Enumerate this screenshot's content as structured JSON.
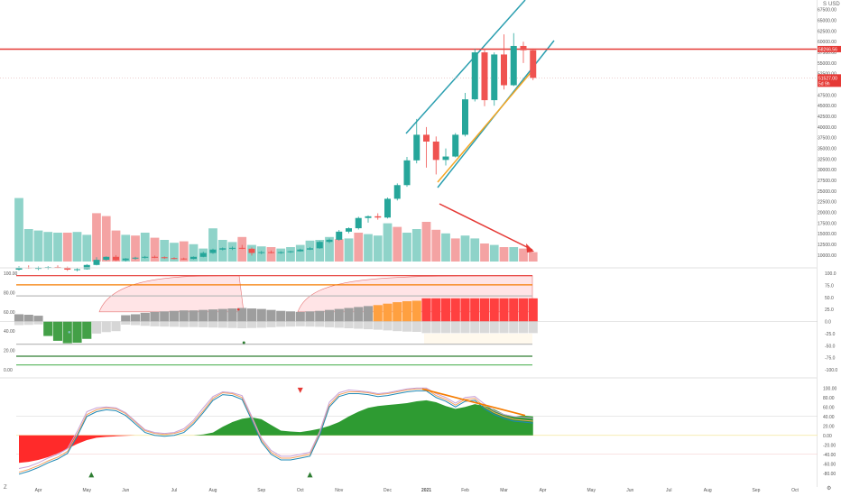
{
  "chart_data": [
    {
      "type": "candlestick",
      "currency": "USD",
      "price_ticks": [
        "67500.00",
        "65000.00",
        "62500.00",
        "60000.00",
        "57500.00",
        "55000.00",
        "52500.00",
        "50000.00",
        "47500.00",
        "45000.00",
        "42500.00",
        "40000.00",
        "37500.00",
        "35000.00",
        "32500.00",
        "30000.00",
        "27500.00",
        "25000.00",
        "22500.00",
        "20000.00",
        "17500.00",
        "15000.00",
        "12500.00",
        "10000.00"
      ],
      "price_range": [
        8500,
        68500
      ],
      "resistance_line": {
        "price": 58266.56,
        "label": "58266.56",
        "color": "#e53935"
      },
      "last_price": {
        "price": 51527.0,
        "label": "51527.00",
        "color": "#e53935"
      },
      "countdown": "5d 9h",
      "candles": [
        {
          "open": 6600,
          "high": 7400,
          "low": 6400,
          "close": 7100
        },
        {
          "open": 7100,
          "high": 7600,
          "low": 6800,
          "close": 6900
        },
        {
          "open": 6900,
          "high": 7300,
          "low": 6500,
          "close": 7000
        },
        {
          "open": 7000,
          "high": 7400,
          "low": 6700,
          "close": 7200
        },
        {
          "open": 7200,
          "high": 7600,
          "low": 6900,
          "close": 7000
        },
        {
          "open": 7000,
          "high": 7300,
          "low": 6300,
          "close": 6600
        },
        {
          "open": 6600,
          "high": 7000,
          "low": 6200,
          "close": 6700
        },
        {
          "open": 6700,
          "high": 7900,
          "low": 6600,
          "close": 7700
        },
        {
          "open": 7700,
          "high": 9500,
          "low": 7600,
          "close": 8900
        },
        {
          "open": 8900,
          "high": 9700,
          "low": 8700,
          "close": 9600
        },
        {
          "open": 9600,
          "high": 10000,
          "low": 8600,
          "close": 8800
        },
        {
          "open": 8800,
          "high": 9300,
          "low": 8500,
          "close": 9200
        },
        {
          "open": 9200,
          "high": 9600,
          "low": 8900,
          "close": 9400
        },
        {
          "open": 9400,
          "high": 9800,
          "low": 9200,
          "close": 9600
        },
        {
          "open": 9600,
          "high": 9900,
          "low": 9300,
          "close": 9500
        },
        {
          "open": 9500,
          "high": 9700,
          "low": 9100,
          "close": 9300
        },
        {
          "open": 9300,
          "high": 9500,
          "low": 9000,
          "close": 9200
        },
        {
          "open": 9200,
          "high": 9400,
          "low": 8900,
          "close": 9100
        },
        {
          "open": 9100,
          "high": 9700,
          "low": 9000,
          "close": 9600
        },
        {
          "open": 9600,
          "high": 10800,
          "low": 9500,
          "close": 10500
        },
        {
          "open": 10500,
          "high": 11500,
          "low": 10300,
          "close": 11300
        },
        {
          "open": 11300,
          "high": 11800,
          "low": 11100,
          "close": 11600
        },
        {
          "open": 11600,
          "high": 12000,
          "low": 11200,
          "close": 11700
        },
        {
          "open": 11700,
          "high": 12400,
          "low": 11400,
          "close": 11500
        },
        {
          "open": 11500,
          "high": 11800,
          "low": 9900,
          "close": 10500
        },
        {
          "open": 10500,
          "high": 11000,
          "low": 10200,
          "close": 10700
        },
        {
          "open": 10700,
          "high": 11100,
          "low": 10400,
          "close": 10600
        },
        {
          "open": 10600,
          "high": 10900,
          "low": 10300,
          "close": 10700
        },
        {
          "open": 10700,
          "high": 11000,
          "low": 10500,
          "close": 10900
        },
        {
          "open": 10900,
          "high": 11500,
          "low": 10800,
          "close": 11300
        },
        {
          "open": 11300,
          "high": 11900,
          "low": 11200,
          "close": 11600
        },
        {
          "open": 11600,
          "high": 13300,
          "low": 11500,
          "close": 13100
        },
        {
          "open": 13100,
          "high": 13900,
          "low": 12800,
          "close": 13600
        },
        {
          "open": 13600,
          "high": 15900,
          "low": 13400,
          "close": 15500
        },
        {
          "open": 15500,
          "high": 16500,
          "low": 15100,
          "close": 16300
        },
        {
          "open": 16300,
          "high": 19000,
          "low": 16000,
          "close": 18700
        },
        {
          "open": 18700,
          "high": 19300,
          "low": 17600,
          "close": 19100
        },
        {
          "open": 19100,
          "high": 19800,
          "low": 18300,
          "close": 18800
        },
        {
          "open": 18800,
          "high": 23500,
          "low": 18600,
          "close": 23200
        },
        {
          "open": 23200,
          "high": 26800,
          "low": 22800,
          "close": 26400
        },
        {
          "open": 26400,
          "high": 33000,
          "low": 26000,
          "close": 32200
        },
        {
          "open": 32200,
          "high": 41900,
          "low": 31500,
          "close": 38200
        },
        {
          "open": 38200,
          "high": 40000,
          "low": 30500,
          "close": 36600
        },
        {
          "open": 36600,
          "high": 37800,
          "low": 28900,
          "close": 32300
        },
        {
          "open": 32300,
          "high": 35000,
          "low": 31000,
          "close": 33100
        },
        {
          "open": 33100,
          "high": 38600,
          "low": 32900,
          "close": 38200
        },
        {
          "open": 38200,
          "high": 48000,
          "low": 37800,
          "close": 46500
        },
        {
          "open": 46500,
          "high": 58300,
          "low": 46000,
          "close": 57500
        },
        {
          "open": 57500,
          "high": 58300,
          "low": 44900,
          "close": 46300
        },
        {
          "open": 46300,
          "high": 57500,
          "low": 45000,
          "close": 57000
        },
        {
          "open": 57000,
          "high": 61700,
          "low": 48800,
          "close": 49800
        },
        {
          "open": 49800,
          "high": 62000,
          "low": 49600,
          "close": 59000
        },
        {
          "open": 59000,
          "high": 60000,
          "low": 55000,
          "close": 58000
        },
        {
          "open": 58000,
          "high": 58400,
          "low": 51000,
          "close": 51527
        }
      ],
      "volume": [
        {
          "v": 88,
          "up": true
        },
        {
          "v": 45,
          "up": true
        },
        {
          "v": 43,
          "up": true
        },
        {
          "v": 41,
          "up": true
        },
        {
          "v": 40,
          "up": true
        },
        {
          "v": 40,
          "up": false
        },
        {
          "v": 41,
          "up": true
        },
        {
          "v": 37,
          "up": true
        },
        {
          "v": 67,
          "up": false
        },
        {
          "v": 63,
          "up": false
        },
        {
          "v": 43,
          "up": false
        },
        {
          "v": 37,
          "up": true
        },
        {
          "v": 36,
          "up": false
        },
        {
          "v": 40,
          "up": true
        },
        {
          "v": 33,
          "up": false
        },
        {
          "v": 30,
          "up": true
        },
        {
          "v": 26,
          "up": true
        },
        {
          "v": 28,
          "up": false
        },
        {
          "v": 24,
          "up": true
        },
        {
          "v": 18,
          "up": true
        },
        {
          "v": 46,
          "up": true
        },
        {
          "v": 30,
          "up": true
        },
        {
          "v": 27,
          "up": true
        },
        {
          "v": 34,
          "up": false
        },
        {
          "v": 23,
          "up": true
        },
        {
          "v": 21,
          "up": true
        },
        {
          "v": 20,
          "up": false
        },
        {
          "v": 18,
          "up": true
        },
        {
          "v": 20,
          "up": true
        },
        {
          "v": 23,
          "up": true
        },
        {
          "v": 29,
          "up": true
        },
        {
          "v": 30,
          "up": true
        },
        {
          "v": 34,
          "up": true
        },
        {
          "v": 31,
          "up": false
        },
        {
          "v": 32,
          "up": true
        },
        {
          "v": 40,
          "up": false
        },
        {
          "v": 38,
          "up": true
        },
        {
          "v": 36,
          "up": true
        },
        {
          "v": 53,
          "up": true
        },
        {
          "v": 48,
          "up": false
        },
        {
          "v": 40,
          "up": true
        },
        {
          "v": 45,
          "up": true
        },
        {
          "v": 55,
          "up": false
        },
        {
          "v": 44,
          "up": false
        },
        {
          "v": 39,
          "up": true
        },
        {
          "v": 32,
          "up": false
        },
        {
          "v": 36,
          "up": true
        },
        {
          "v": 32,
          "up": true
        },
        {
          "v": 25,
          "up": false
        },
        {
          "v": 23,
          "up": true
        },
        {
          "v": 20,
          "up": false
        },
        {
          "v": 20,
          "up": true
        },
        {
          "v": 18,
          "up": false
        },
        {
          "v": 13,
          "up": false
        }
      ],
      "trend_lines": [
        {
          "kind": "upper-channel",
          "color": "#2b9fb0"
        },
        {
          "kind": "lower-channel",
          "color": "#2b9fb0"
        },
        {
          "kind": "support",
          "color": "#f5a623"
        },
        {
          "kind": "volume-divergence-arrow",
          "color": "#e53935"
        }
      ]
    },
    {
      "type": "oscillator",
      "left_ticks": [
        "100.00",
        "80.00",
        "60.00",
        "40.00",
        "20.00",
        "0.00"
      ],
      "right_ticks": [
        "100.0",
        "75.0",
        "50.0",
        "25.0",
        "0.0",
        "-25.0",
        "-50.0",
        "-75.0",
        "-100.0"
      ],
      "range": [
        -100,
        100
      ],
      "bars": [
        {
          "v": 15,
          "c": "gray"
        },
        {
          "v": 14,
          "c": "gray"
        },
        {
          "v": 12,
          "c": "gray"
        },
        {
          "v": -30,
          "c": "green"
        },
        {
          "v": -40,
          "c": "green"
        },
        {
          "v": -45,
          "c": "green"
        },
        {
          "v": -44,
          "c": "green"
        },
        {
          "v": -36,
          "c": "green"
        },
        {
          "v": -25,
          "c": "light"
        },
        {
          "v": -22,
          "c": "light"
        },
        {
          "v": -20,
          "c": "light"
        },
        {
          "v": 13,
          "c": "gray"
        },
        {
          "v": 15,
          "c": "gray"
        },
        {
          "v": 18,
          "c": "gray"
        },
        {
          "v": 20,
          "c": "gray"
        },
        {
          "v": 21,
          "c": "gray"
        },
        {
          "v": 22,
          "c": "gray"
        },
        {
          "v": 23,
          "c": "gray"
        },
        {
          "v": 23,
          "c": "gray"
        },
        {
          "v": 24,
          "c": "gray"
        },
        {
          "v": 25,
          "c": "gray"
        },
        {
          "v": 26,
          "c": "gray"
        },
        {
          "v": 27,
          "c": "gray"
        },
        {
          "v": 28,
          "c": "gray"
        },
        {
          "v": 27,
          "c": "gray"
        },
        {
          "v": 26,
          "c": "gray"
        },
        {
          "v": 24,
          "c": "gray"
        },
        {
          "v": 22,
          "c": "gray"
        },
        {
          "v": 21,
          "c": "gray"
        },
        {
          "v": 20,
          "c": "gray"
        },
        {
          "v": 21,
          "c": "gray"
        },
        {
          "v": 22,
          "c": "gray"
        },
        {
          "v": 24,
          "c": "gray"
        },
        {
          "v": 26,
          "c": "gray"
        },
        {
          "v": 28,
          "c": "gray"
        },
        {
          "v": 30,
          "c": "gray"
        },
        {
          "v": 32,
          "c": "gray"
        },
        {
          "v": 34,
          "c": "orange"
        },
        {
          "v": 37,
          "c": "orange"
        },
        {
          "v": 40,
          "c": "orange"
        },
        {
          "v": 42,
          "c": "orange"
        },
        {
          "v": 43,
          "c": "orange"
        },
        {
          "v": 48,
          "c": "red"
        },
        {
          "v": 48,
          "c": "red"
        },
        {
          "v": 48,
          "c": "red"
        },
        {
          "v": 48,
          "c": "red"
        },
        {
          "v": 48,
          "c": "red"
        },
        {
          "v": 48,
          "c": "red"
        },
        {
          "v": 48,
          "c": "red"
        },
        {
          "v": 48,
          "c": "red"
        },
        {
          "v": 48,
          "c": "red"
        },
        {
          "v": 48,
          "c": "red"
        },
        {
          "v": 48,
          "c": "red"
        },
        {
          "v": 48,
          "c": "red"
        }
      ],
      "levels": [
        {
          "value": 95,
          "color": "#e53935"
        },
        {
          "value": 76,
          "color": "#f57c00"
        },
        {
          "value": 53,
          "color": "#bbbbbb"
        },
        {
          "value": -47,
          "color": "#bbbbbb"
        },
        {
          "value": -72,
          "color": "#2e7d32"
        },
        {
          "value": -90,
          "color": "#66bb6a"
        }
      ]
    },
    {
      "type": "oscillator",
      "right_ticks": [
        "100.00",
        "80.00",
        "60.00",
        "40.00",
        "20.00",
        "0.00",
        "-20.00",
        "-40.00",
        "-60.00",
        "-80.00"
      ],
      "range": [
        -90,
        110
      ],
      "area": [
        -58,
        -56,
        -52,
        -46,
        -38,
        -28,
        -18,
        -10,
        -5,
        -3,
        -2,
        -1,
        0,
        0,
        0,
        0,
        0,
        0,
        0,
        2,
        6,
        18,
        28,
        35,
        38,
        34,
        22,
        10,
        8,
        7,
        10,
        14,
        20,
        28,
        40,
        50,
        58,
        62,
        64,
        66,
        68,
        72,
        74,
        70,
        62,
        56,
        60,
        66,
        62,
        55,
        45,
        40,
        42,
        40
      ],
      "line_a": [
        -70,
        -66,
        -58,
        -48,
        -40,
        -28,
        8,
        50,
        58,
        60,
        58,
        48,
        30,
        12,
        6,
        4,
        6,
        14,
        32,
        58,
        82,
        92,
        90,
        84,
        40,
        -6,
        -32,
        -44,
        -44,
        -40,
        -36,
        8,
        70,
        90,
        96,
        94,
        92,
        88,
        90,
        94,
        98,
        100,
        100,
        88,
        80,
        68,
        80,
        82,
        66,
        52,
        44,
        40,
        38,
        36
      ],
      "line_b": [
        -78,
        -72,
        -64,
        -54,
        -46,
        -34,
        2,
        44,
        54,
        58,
        56,
        46,
        28,
        10,
        4,
        2,
        4,
        10,
        28,
        52,
        78,
        90,
        88,
        80,
        36,
        -10,
        -36,
        -48,
        -48,
        -44,
        -40,
        4,
        64,
        86,
        92,
        92,
        90,
        86,
        88,
        92,
        96,
        98,
        98,
        84,
        76,
        64,
        76,
        78,
        60,
        48,
        40,
        34,
        32,
        30
      ],
      "signals": [
        {
          "bar": 7,
          "dir": "up",
          "color": "#2e7d32"
        },
        {
          "bar": 29,
          "dir": "down",
          "color": "#e53935"
        },
        {
          "bar": 30,
          "dir": "up",
          "color": "#2e7d32"
        }
      ]
    }
  ],
  "x_axis": {
    "ticks": [
      {
        "label": "Apr",
        "bar": 2
      },
      {
        "label": "May",
        "bar": 7
      },
      {
        "label": "Jun",
        "bar": 11
      },
      {
        "label": "Jul",
        "bar": 16
      },
      {
        "label": "Aug",
        "bar": 20
      },
      {
        "label": "Sep",
        "bar": 25
      },
      {
        "label": "Oct",
        "bar": 29
      },
      {
        "label": "Nov",
        "bar": 33
      },
      {
        "label": "Dec",
        "bar": 38
      },
      {
        "label": "2021",
        "bar": 42
      },
      {
        "label": "Feb",
        "bar": 46
      },
      {
        "label": "Mar",
        "bar": 50
      },
      {
        "label": "Apr",
        "bar": 54
      },
      {
        "label": "May",
        "bar": 59
      },
      {
        "label": "Jun",
        "bar": 63
      },
      {
        "label": "Jul",
        "bar": 67
      },
      {
        "label": "Aug",
        "bar": 71
      },
      {
        "label": "Sep",
        "bar": 76
      },
      {
        "label": "Oct",
        "bar": 80
      }
    ]
  },
  "corner": {
    "left_glyph": "Z",
    "right_glyph": "⚙",
    "top_right": "S"
  }
}
